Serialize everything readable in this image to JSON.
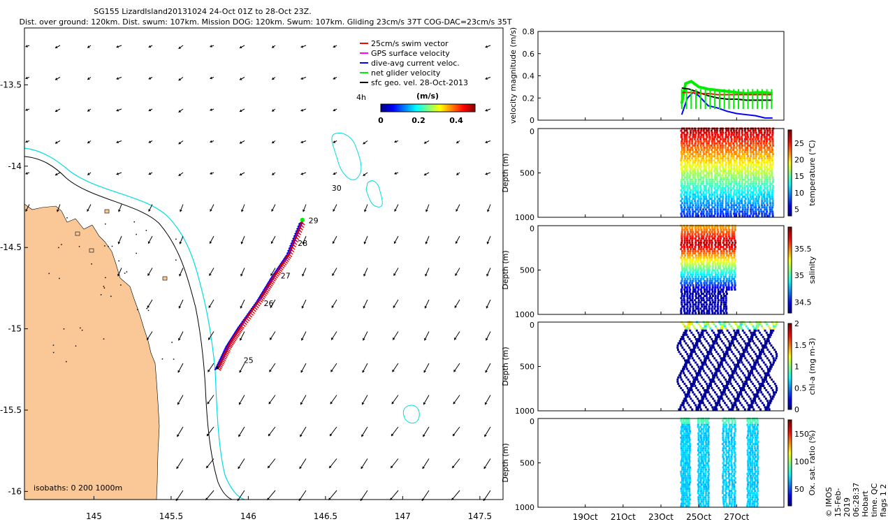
{
  "title": {
    "line1": "SG155 LizardIsland20131024 24-Oct 01Z to 28-Oct 23Z.",
    "line2": "Dist. over ground: 120km. Dist. swum: 107km. Mission DOG: 120km. Swum: 107km. Gliding 23cm/s 37T COG-DAC=23cm/s 35T"
  },
  "stamp": "© IMOS 15-Feb-2019 06:28:37 Hobart time. QC flags 1  2",
  "colors": {
    "land": "#f9c896",
    "isobath200": "#00dddd",
    "isobath1000": "#000000",
    "swim": "#ff0000",
    "dac": "#0000ff",
    "net": "#00ee00",
    "gps": "#ff00ff"
  },
  "chart_data": [
    {
      "type": "map",
      "xticks": [
        "145",
        "145.5",
        "146",
        "146.5",
        "147",
        "147.5"
      ],
      "yticks": [
        "-13.5",
        "-14",
        "-14.5",
        "-15",
        "-15.5",
        "-16"
      ],
      "xlim": [
        144.55,
        147.65
      ],
      "ylim": [
        -16.05,
        -13.15
      ],
      "legend": [
        {
          "label": "25cm/s swim vector",
          "color": "#ff0000"
        },
        {
          "label": "GPS surface velocity",
          "color": "#ff00ff"
        },
        {
          "label": "dive-avg current veloc.",
          "color": "#0000ff"
        },
        {
          "label": "net glider velocity",
          "color": "#00ee00"
        },
        {
          "label": "sfc geo. vel. 28-Oct-2013",
          "color": "#000000"
        }
      ],
      "legend_position": "top-right",
      "age_label": "4h",
      "colorbar": {
        "label": "(m/s)",
        "ticks": [
          "0",
          "0.2",
          "0.4"
        ],
        "range": [
          0,
          0.5
        ]
      },
      "isobaths_label": "isobaths: 0   200  1000m",
      "day_labels": [
        {
          "text": "25",
          "lon": 145.97,
          "lat": -15.21
        },
        {
          "text": "26",
          "lon": 146.1,
          "lat": -14.86
        },
        {
          "text": "27",
          "lon": 146.21,
          "lat": -14.69
        },
        {
          "text": "28",
          "lon": 146.32,
          "lat": -14.49
        },
        {
          "text": "29",
          "lon": 146.39,
          "lat": -14.35
        },
        {
          "text": "30",
          "lon": 146.54,
          "lat": -14.15
        }
      ],
      "track": [
        [
          145.8,
          -15.24
        ],
        [
          145.87,
          -15.1
        ],
        [
          145.95,
          -14.98
        ],
        [
          146.07,
          -14.82
        ],
        [
          146.16,
          -14.68
        ],
        [
          146.26,
          -14.54
        ],
        [
          146.35,
          -14.33
        ]
      ]
    },
    {
      "type": "line",
      "ylabel": "velocity magnitude (m/s)",
      "ylim": [
        0,
        0.8
      ],
      "yticks": [
        "0",
        "0.2",
        "0.4",
        "0.6",
        "0.8"
      ],
      "series": [
        {
          "name": "",
          "color": "#00ee00",
          "x": [
            24.1,
            24.3,
            24.6,
            25.0,
            25.5,
            26.0,
            26.5,
            27.0,
            27.5,
            28.0,
            28.5,
            28.9
          ],
          "values": [
            0.15,
            0.33,
            0.35,
            0.3,
            0.28,
            0.27,
            0.26,
            0.25,
            0.24,
            0.25,
            0.25,
            0.24
          ]
        },
        {
          "name": "",
          "color": "#000000",
          "x": [
            24.1,
            24.5,
            25.0,
            25.5,
            26.0,
            26.5,
            27.0,
            27.5,
            28.0,
            28.5,
            28.9
          ],
          "values": [
            0.29,
            0.28,
            0.25,
            0.22,
            0.2,
            0.19,
            0.19,
            0.18,
            0.18,
            0.18,
            0.18
          ]
        },
        {
          "name": "",
          "color": "#0000ff",
          "x": [
            24.1,
            24.4,
            24.7,
            25.0,
            25.5,
            26.0,
            26.5,
            27.0,
            27.5,
            28.0,
            28.5,
            28.9
          ],
          "values": [
            0.05,
            0.2,
            0.25,
            0.22,
            0.13,
            0.11,
            0.08,
            0.06,
            0.05,
            0.04,
            0.02,
            0.02
          ]
        },
        {
          "name": "",
          "color": "#ff0000",
          "x": [
            24.1,
            24.5,
            25.0,
            25.5,
            26.0,
            26.5,
            27.0,
            27.5,
            28.0,
            28.5,
            28.9
          ],
          "values": [
            0.25,
            0.25,
            0.24,
            0.24,
            0.23,
            0.23,
            0.23,
            0.23,
            0.23,
            0.23,
            0.23
          ]
        }
      ]
    },
    {
      "type": "scatter",
      "variable": "temperature",
      "ylabel": "Depth (m)",
      "colorbar_label": "temperature (°C)",
      "colorbar_ticks": [
        "5",
        "10",
        "15",
        "20",
        "25"
      ],
      "crange": [
        3,
        29
      ],
      "ylim": [
        1000,
        0
      ],
      "yticks": [
        "0",
        "500",
        "1000"
      ],
      "xrange": [
        24.1,
        28.9
      ],
      "profiles": 34,
      "max_depth": 1000
    },
    {
      "type": "scatter",
      "variable": "salinity",
      "ylabel": "Depth (m)",
      "colorbar_label": "salinity",
      "colorbar_ticks": [
        "34.5",
        "35",
        "35.5"
      ],
      "crange": [
        34.3,
        35.9
      ],
      "ylim": [
        1000,
        0
      ],
      "yticks": [
        "0",
        "500",
        "1000"
      ],
      "xrange": [
        24.1,
        26.9
      ],
      "profiles": 20,
      "max_depth": 1000
    },
    {
      "type": "scatter",
      "variable": "chl-a",
      "ylabel": "Depth (m)",
      "colorbar_label": "chl-a (mg m-3)",
      "colorbar_ticks": [
        "0",
        "0.5",
        "1",
        "1.5",
        "2"
      ],
      "crange": [
        0,
        2
      ],
      "ylim": [
        1000,
        0
      ],
      "yticks": [
        "0",
        "500",
        "1000"
      ],
      "xrange": [
        24.1,
        28.9
      ],
      "profiles": 34,
      "max_depth": 1000
    },
    {
      "type": "scatter",
      "variable": "oxygen saturation",
      "ylabel": "Depth (m)",
      "colorbar_label": "Ox. sat. ratio (%)",
      "colorbar_ticks": [
        "50",
        "100",
        "150"
      ],
      "crange": [
        20,
        175
      ],
      "ylim": [
        1000,
        0
      ],
      "yticks": [
        "0",
        "500",
        "1000"
      ],
      "xranges": [
        [
          24.1,
          24.5
        ],
        [
          25.0,
          25.5
        ],
        [
          26.3,
          26.9
        ],
        [
          27.6,
          28.1
        ]
      ],
      "max_depth": 1000,
      "xticks": [
        "19Oct",
        "21Oct",
        "23Oct",
        "25Oct",
        "27Oct"
      ],
      "xtick_values": [
        19,
        21,
        23,
        25,
        27
      ],
      "xlim": [
        16.5,
        29.5
      ]
    }
  ]
}
